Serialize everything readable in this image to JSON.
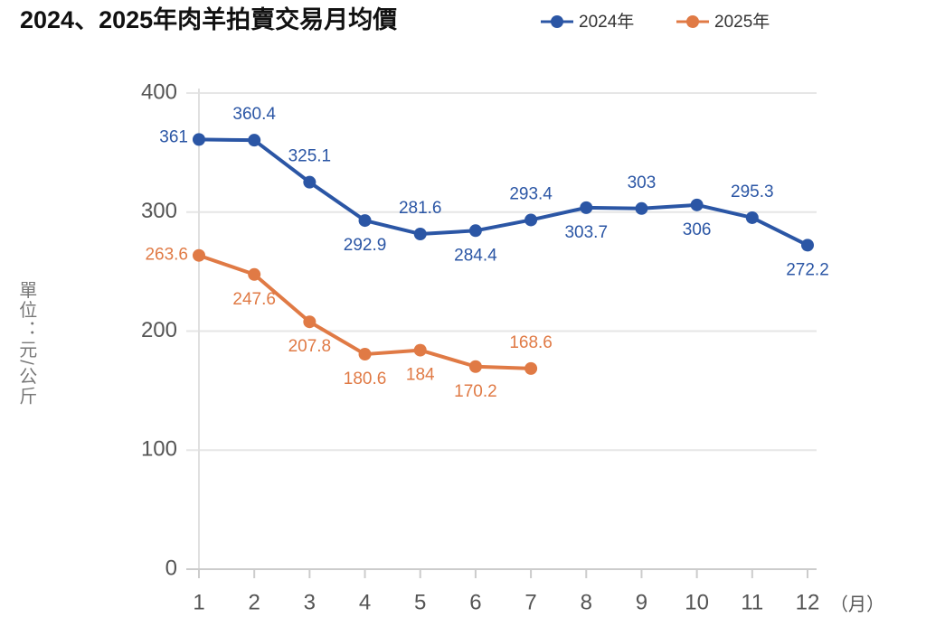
{
  "chart_data": {
    "type": "line",
    "title": "2024、2025年肉羊拍賣交易月均價",
    "y_label": "單位：元/公斤",
    "x_label": "（月）",
    "categories": [
      "1",
      "2",
      "3",
      "4",
      "5",
      "6",
      "7",
      "8",
      "9",
      "10",
      "11",
      "12"
    ],
    "series": [
      {
        "name": "2024年",
        "color": "#2b56a5",
        "values": [
          361,
          360.4,
          325.1,
          292.9,
          281.6,
          284.4,
          293.4,
          303.7,
          303,
          306,
          295.3,
          272.2
        ]
      },
      {
        "name": "2025年",
        "color": "#e07a45",
        "values": [
          263.6,
          247.6,
          207.8,
          180.6,
          184,
          170.2,
          168.6,
          null,
          null,
          null,
          null,
          null
        ]
      }
    ],
    "ylim": [
      0,
      400
    ],
    "yticks": [
      0,
      100,
      200,
      300,
      400
    ],
    "grid": true,
    "legend": "top-right"
  }
}
